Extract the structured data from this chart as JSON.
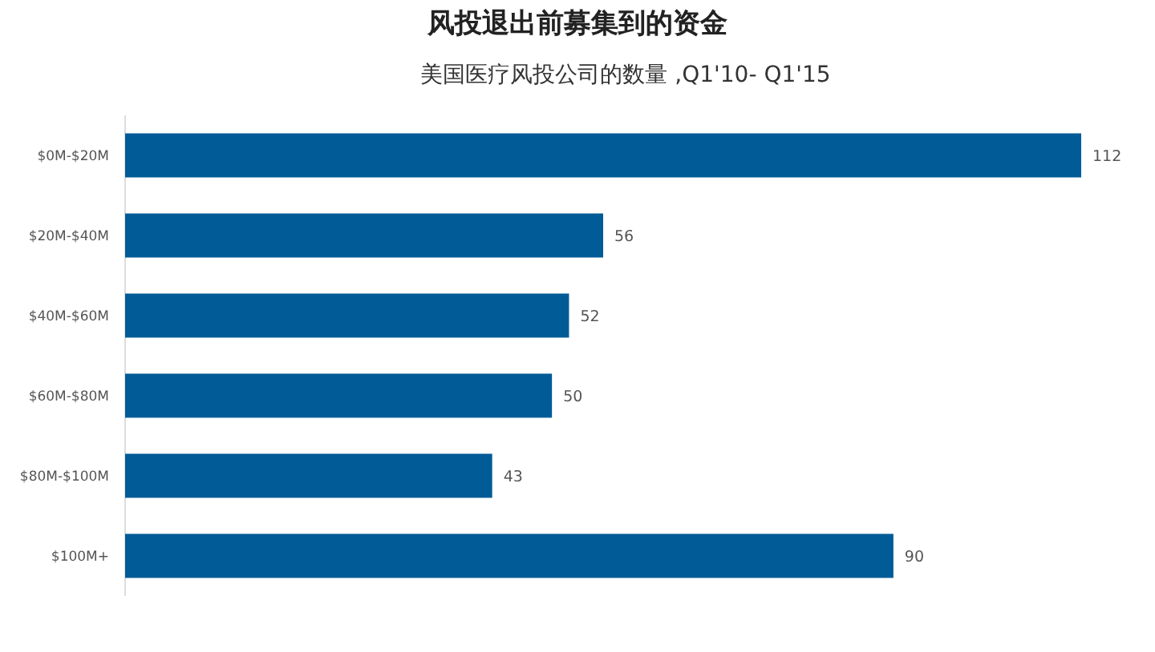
{
  "chart_data": {
    "type": "bar",
    "orientation": "horizontal",
    "title": "风投退出前募集到的资金",
    "subtitle": "美国医疗风投公司的数量 ,Q1'10- Q1'15",
    "categories": [
      "$0M-$20M",
      "$20M-$40M",
      "$40M-$60M",
      "$60M-$80M",
      "$80M-$100M",
      "$100M+"
    ],
    "values": [
      112,
      56,
      52,
      50,
      43,
      90
    ],
    "color": "#005b96",
    "data_labels": true
  }
}
